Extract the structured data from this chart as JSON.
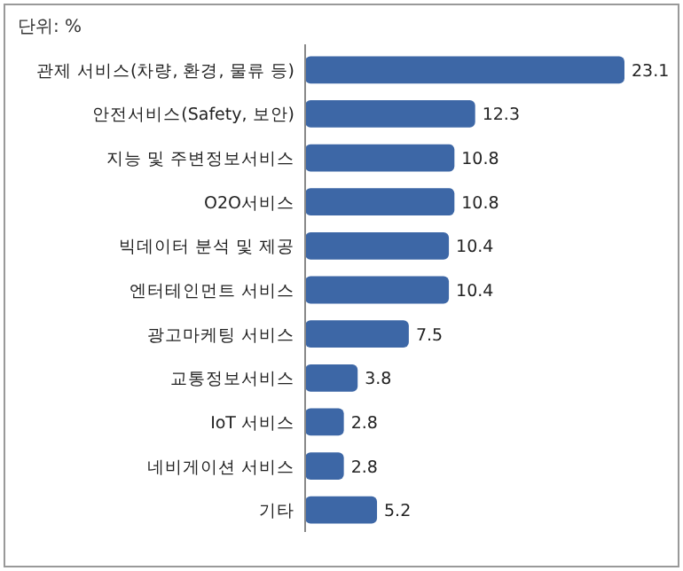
{
  "chart_data": {
    "type": "bar",
    "orientation": "horizontal",
    "annotations": [
      "단위: %"
    ],
    "categories": [
      "관제 서비스(차량, 환경, 물류 등)",
      "안전서비스(Safety, 보안)",
      "지능 및 주변정보서비스",
      "O2O서비스",
      "빅데이터 분석 및 제공",
      "엔터테인먼트 서비스",
      "광고마케팅 서비스",
      "교통정보서비스",
      "IoT 서비스",
      "네비게이션 서비스",
      "기타"
    ],
    "values": [
      23.1,
      12.3,
      10.8,
      10.8,
      10.4,
      10.4,
      7.5,
      3.8,
      2.8,
      2.8,
      5.2
    ],
    "color": "#3d67a6",
    "data_labels": true
  }
}
